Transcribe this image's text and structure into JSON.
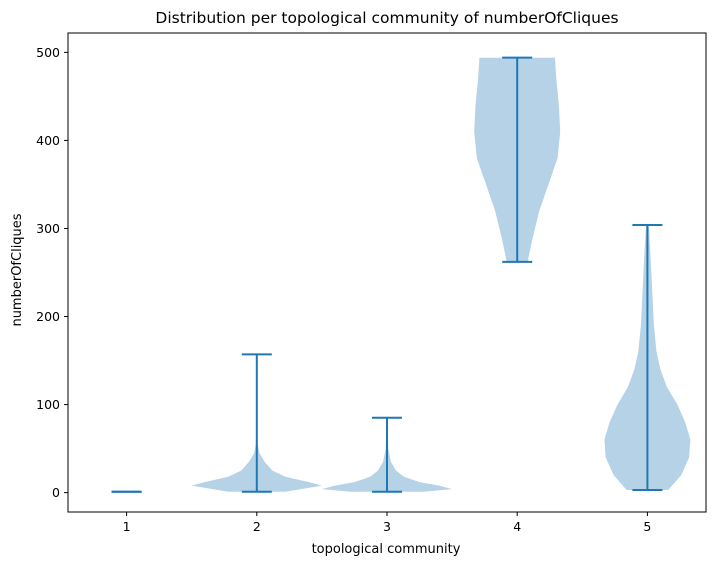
{
  "chart_data": {
    "type": "violin",
    "title": "Distribution per topological community of numberOfCliques",
    "xlabel": "topological community",
    "ylabel": "numberOfCliques",
    "categories": [
      "1",
      "2",
      "3",
      "4",
      "5"
    ],
    "xlim": [
      0.55,
      5.45
    ],
    "ylim": [
      -22,
      522
    ],
    "yticks": [
      0,
      100,
      200,
      300,
      400,
      500
    ],
    "colors": {
      "body": "#b5d2e7",
      "line": "#1f77b4"
    },
    "violins": [
      {
        "category": "1",
        "min": 1,
        "max": 1,
        "profile": []
      },
      {
        "category": "2",
        "min": 1,
        "max": 157,
        "profile": [
          [
            1,
            0.22
          ],
          [
            4,
            0.34
          ],
          [
            8,
            0.5
          ],
          [
            12,
            0.4
          ],
          [
            18,
            0.22
          ],
          [
            25,
            0.12
          ],
          [
            35,
            0.06
          ],
          [
            45,
            0.02
          ],
          [
            55,
            0.008
          ],
          [
            75,
            0.003
          ],
          [
            157,
            0.003
          ]
        ]
      },
      {
        "category": "3",
        "min": 1,
        "max": 85,
        "profile": [
          [
            1,
            0.28
          ],
          [
            4,
            0.5
          ],
          [
            8,
            0.4
          ],
          [
            12,
            0.25
          ],
          [
            18,
            0.13
          ],
          [
            25,
            0.07
          ],
          [
            35,
            0.03
          ],
          [
            50,
            0.01
          ],
          [
            85,
            0.004
          ]
        ]
      },
      {
        "category": "4",
        "min": 262,
        "max": 494,
        "profile": [
          [
            262,
            0.08
          ],
          [
            290,
            0.12
          ],
          [
            320,
            0.17
          ],
          [
            350,
            0.24
          ],
          [
            380,
            0.31
          ],
          [
            410,
            0.33
          ],
          [
            440,
            0.32
          ],
          [
            470,
            0.3
          ],
          [
            494,
            0.29
          ]
        ]
      },
      {
        "category": "5",
        "min": 3,
        "max": 304,
        "profile": [
          [
            3,
            0.16
          ],
          [
            20,
            0.26
          ],
          [
            40,
            0.32
          ],
          [
            60,
            0.33
          ],
          [
            80,
            0.29
          ],
          [
            100,
            0.23
          ],
          [
            120,
            0.15
          ],
          [
            140,
            0.1
          ],
          [
            160,
            0.07
          ],
          [
            190,
            0.05
          ],
          [
            220,
            0.04
          ],
          [
            250,
            0.03
          ],
          [
            280,
            0.02
          ],
          [
            304,
            0.01
          ]
        ]
      }
    ]
  }
}
